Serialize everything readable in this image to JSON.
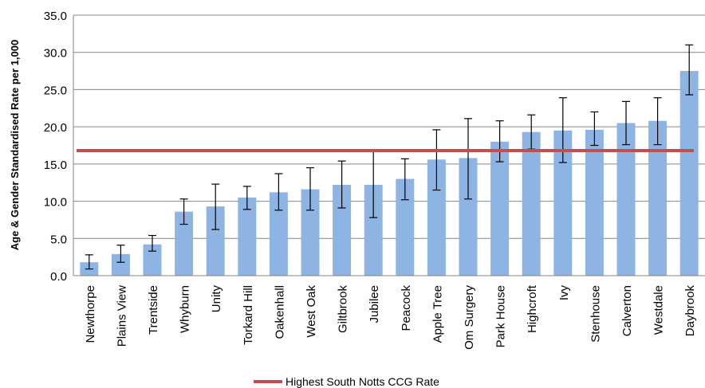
{
  "chart_data": {
    "type": "bar",
    "ylabel": "Age & Gender Standardised  Rate per 1,000",
    "ylim": [
      0,
      35
    ],
    "ytick_step": 5,
    "ytick_labels": [
      "0.0",
      "5.0",
      "10.0",
      "15.0",
      "20.0",
      "25.0",
      "30.0",
      "35.0"
    ],
    "grid": true,
    "categories": [
      "Newthorpe",
      "Plains View",
      "Trentside",
      "Whyburn",
      "Unity",
      "Torkard Hill",
      "Oakenhall",
      "West Oak",
      "Giltbrook",
      "Jubilee",
      "Peacock",
      "Apple Tree",
      "Om Surgery",
      "Park House",
      "Highcroft",
      "Ivy",
      "Stenhouse",
      "Calverton",
      "Westdale",
      "Daybrook"
    ],
    "series": [
      {
        "values": [
          1.8,
          2.9,
          4.2,
          8.6,
          9.3,
          10.5,
          11.2,
          11.6,
          12.2,
          12.2,
          13.0,
          15.6,
          15.8,
          18.0,
          19.3,
          19.5,
          19.6,
          20.5,
          20.8,
          27.5
        ],
        "error_low": [
          0.9,
          1.8,
          3.3,
          6.9,
          6.2,
          8.9,
          8.8,
          8.8,
          9.1,
          7.8,
          10.2,
          11.5,
          10.3,
          15.3,
          17.0,
          15.2,
          17.5,
          17.6,
          17.6,
          24.3
        ],
        "error_high": [
          2.8,
          4.1,
          5.4,
          10.3,
          12.3,
          12.0,
          13.7,
          14.5,
          15.4,
          16.7,
          15.7,
          19.6,
          21.1,
          20.8,
          21.6,
          23.9,
          22.0,
          23.4,
          23.9,
          31.0
        ],
        "color": "#8EB4E3"
      }
    ],
    "reference_line": {
      "name": "Highest South Notts CCG Rate",
      "value": 16.8,
      "color": "#C0504D"
    },
    "legend": "bottom-center"
  }
}
